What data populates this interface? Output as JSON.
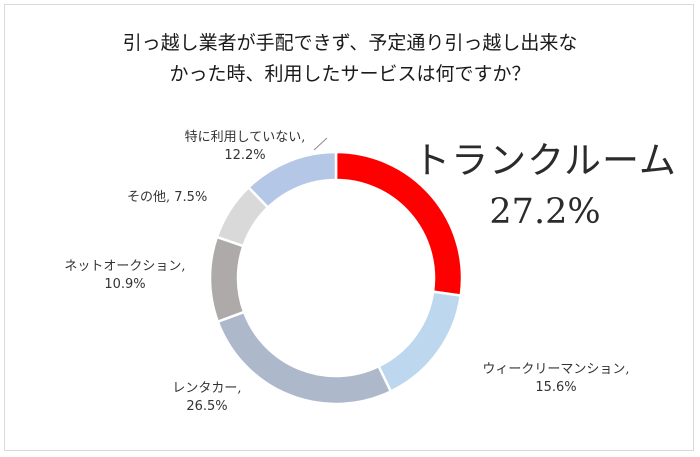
{
  "chart_data": {
    "type": "pie",
    "title": [
      "引っ越し業者が手配できず、予定通り引っ越し出来な",
      "かった時、利用したサービスは何ですか？"
    ],
    "slices": [
      {
        "label": "トランクルーム",
        "value_text": "27.2%",
        "value": 27.2,
        "color": "#ff0000"
      },
      {
        "label": "ウィークリーマンション,",
        "value_text": "15.6%",
        "value": 15.6,
        "color": "#bdd7ee"
      },
      {
        "label": "レンタカー,",
        "value_text": "26.5%",
        "value": 26.5,
        "color": "#adb9ca"
      },
      {
        "label": "ネットオークション,",
        "value_text": "10.9%",
        "value": 10.9,
        "color": "#aeaaaa"
      },
      {
        "label": "その他,",
        "value_text": "7.5%",
        "value": 7.5,
        "color": "#d9d9d9"
      },
      {
        "label": "特に利用していない,",
        "value_text": "12.2%",
        "value": 12.2,
        "color": "#b4c7e7"
      }
    ],
    "start_angle_deg": 0,
    "direction": "clockwise"
  }
}
